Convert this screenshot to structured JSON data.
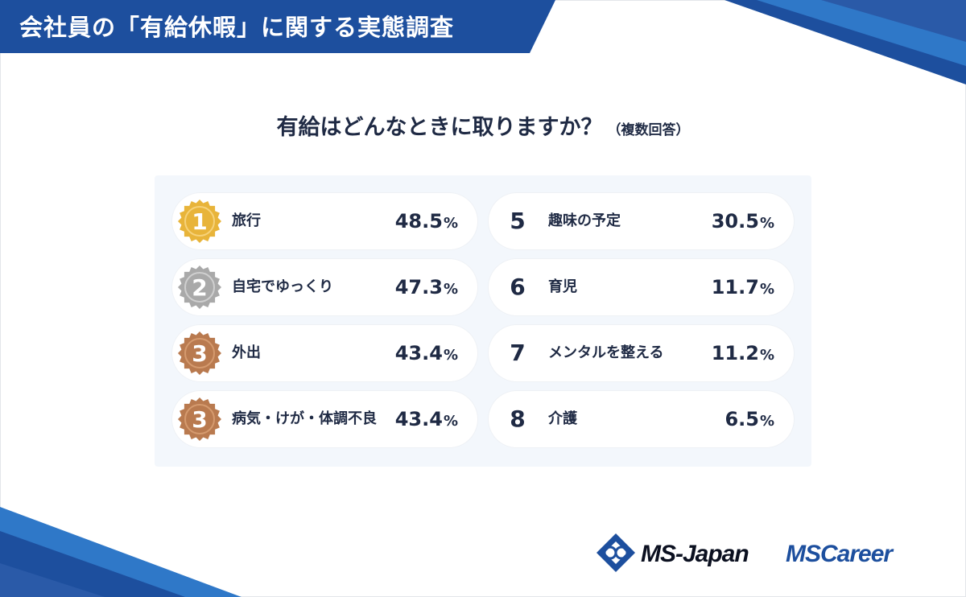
{
  "header": {
    "title": "会社員の「有給休暇」に関する実態調査"
  },
  "question": {
    "main": "有給はどんなときに取りますか？",
    "sub": "（複数回答）"
  },
  "colors": {
    "header_blue": "#1d4f9e",
    "gold": "#e8b43a",
    "silver": "#a9a9a9",
    "bronze": "#b97a4f",
    "text": "#1f2a44",
    "panel": "#f3f7fc"
  },
  "chart_data": {
    "type": "table",
    "title": "有給はどんなときに取りますか？",
    "unit": "%",
    "rows": [
      {
        "rank": "1",
        "label": "旅行",
        "value": "48.5",
        "medal": "gold"
      },
      {
        "rank": "2",
        "label": "自宅でゆっくり",
        "value": "47.3",
        "medal": "silver"
      },
      {
        "rank": "3",
        "label": "外出",
        "value": "43.4",
        "medal": "bronze"
      },
      {
        "rank": "3",
        "label": "病気・けが・体調不良",
        "value": "43.4",
        "medal": "bronze"
      },
      {
        "rank": "5",
        "label": "趣味の予定",
        "value": "30.5",
        "medal": ""
      },
      {
        "rank": "6",
        "label": "育児",
        "value": "11.7",
        "medal": ""
      },
      {
        "rank": "7",
        "label": "メンタルを整える",
        "value": "11.2",
        "medal": ""
      },
      {
        "rank": "8",
        "label": "介護",
        "value": "6.5",
        "medal": ""
      }
    ]
  },
  "logos": {
    "ms_japan": "MS-Japan",
    "ms_career": "MSCareer"
  }
}
